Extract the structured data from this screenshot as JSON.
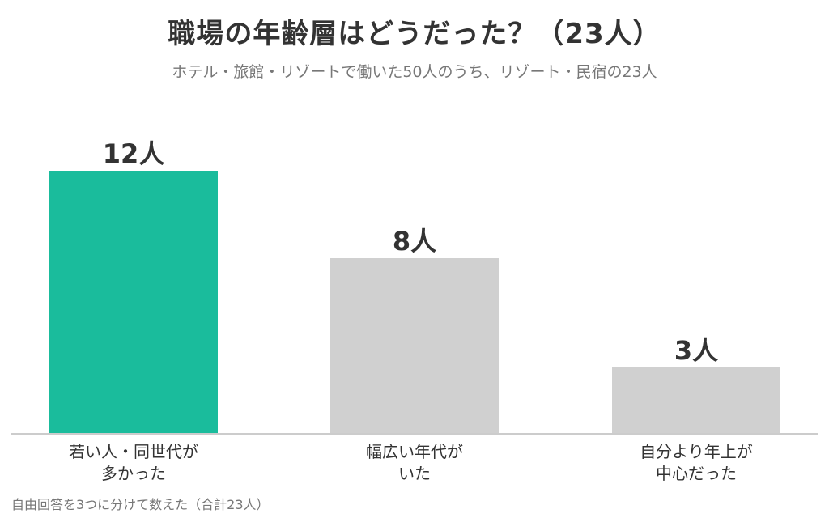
{
  "chart_data": {
    "type": "bar",
    "title": "職場の年齢層はどうだった？（23人）",
    "subtitle": "ホテル・旅館・リゾートで働いた50人のうち、リゾート・民宿の23人",
    "categories": [
      [
        "若い人・同世代が",
        "多かった"
      ],
      [
        "幅広い年代が",
        "いた"
      ],
      [
        "自分より年上が",
        "中心だった"
      ]
    ],
    "values": [
      12,
      8,
      3
    ],
    "data_labels": [
      "12人",
      "8人",
      "3人"
    ],
    "ylim": [
      0,
      12
    ],
    "grid": false,
    "colors": [
      "#1abc9c",
      "#d0d0d0",
      "#d0d0d0"
    ],
    "footnote": "自由回答を3つに分けて数えた（合計23人）"
  }
}
